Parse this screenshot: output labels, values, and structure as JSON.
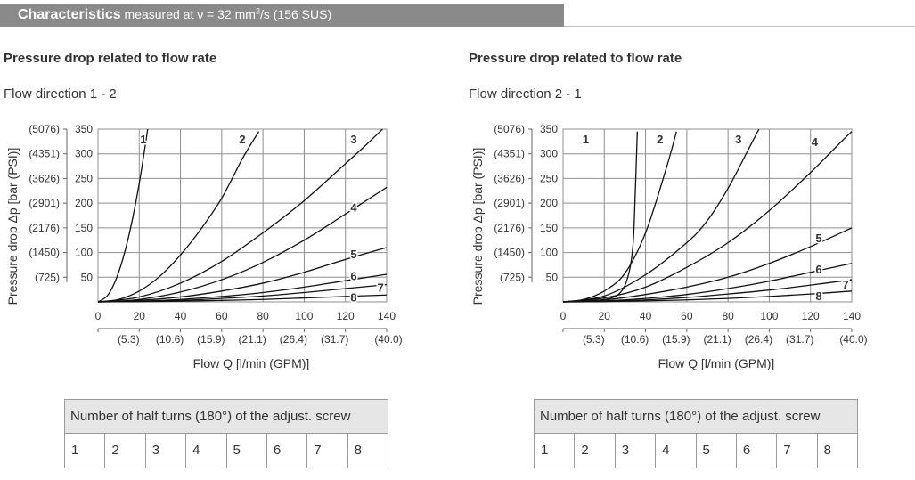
{
  "header": {
    "title": "Characteristics",
    "subtitle_pre": " measured at ν = 32 mm",
    "subtitle_sup": "2",
    "subtitle_post": "/s (156 SUS)"
  },
  "table": {
    "header": "Number of half turns (180°) of the adjust. screw",
    "cells": [
      "1",
      "2",
      "3",
      "4",
      "5",
      "6",
      "7",
      "8"
    ]
  },
  "chart_data": [
    {
      "type": "line",
      "title": "Pressure drop related to flow rate",
      "subtitle": "Flow direction 1 - 2",
      "xlabel": "Flow Q [l/min (GPM)]",
      "ylabel": "Pressure drop Δp [bar (PSI)]",
      "xlim": [
        0,
        140
      ],
      "ylim": [
        0,
        350
      ],
      "x_ticks": [
        0,
        20,
        40,
        60,
        80,
        100,
        120,
        140
      ],
      "x_ticks_secondary": [
        "(5.3)",
        "(10.6)",
        "(15.9)",
        "(21.1)",
        "(26.4)",
        "(31.7)",
        "(40.0)"
      ],
      "y_ticks": [
        50,
        100,
        150,
        200,
        250,
        300,
        350
      ],
      "y_ticks_secondary": [
        "(725)",
        "(1450)",
        "(2176)",
        "(2901)",
        "(3626)",
        "(4351)",
        "(5076)"
      ],
      "grid": true,
      "series": [
        {
          "name": "1",
          "x": [
            0,
            5,
            10,
            15,
            20,
            25
          ],
          "y": [
            0,
            15,
            60,
            135,
            240,
            375
          ]
        },
        {
          "name": "2",
          "x": [
            0,
            10,
            20,
            30,
            40,
            50,
            60,
            70,
            78
          ],
          "y": [
            0,
            5,
            22,
            52,
            95,
            148,
            210,
            290,
            345
          ]
        },
        {
          "name": "3",
          "x": [
            0,
            20,
            40,
            60,
            80,
            100,
            120,
            130,
            138
          ],
          "y": [
            0,
            10,
            38,
            82,
            140,
            205,
            280,
            318,
            350
          ]
        },
        {
          "name": "4",
          "x": [
            0,
            20,
            40,
            60,
            80,
            100,
            120,
            140
          ],
          "y": [
            0,
            5,
            20,
            45,
            80,
            125,
            178,
            232
          ]
        },
        {
          "name": "5",
          "x": [
            0,
            20,
            40,
            60,
            80,
            100,
            120,
            140
          ],
          "y": [
            0,
            3,
            10,
            22,
            38,
            60,
            86,
            110
          ]
        },
        {
          "name": "6",
          "x": [
            0,
            20,
            40,
            60,
            80,
            100,
            120,
            140
          ],
          "y": [
            0,
            1.5,
            5,
            11,
            19,
            30,
            43,
            56
          ]
        },
        {
          "name": "7",
          "x": [
            0,
            20,
            40,
            60,
            80,
            100,
            120,
            140
          ],
          "y": [
            0,
            1,
            3,
            7,
            12,
            19,
            27,
            35
          ]
        },
        {
          "name": "8",
          "x": [
            0,
            20,
            40,
            60,
            80,
            100,
            120,
            140
          ],
          "y": [
            0,
            0.5,
            1.5,
            3,
            5,
            8,
            11,
            14
          ]
        }
      ],
      "curve_labels": [
        {
          "name": "1",
          "x": 22,
          "y": 330
        },
        {
          "name": "2",
          "x": 70,
          "y": 330
        },
        {
          "name": "3",
          "x": 124,
          "y": 330
        },
        {
          "name": "4",
          "x": 124,
          "y": 192
        },
        {
          "name": "5",
          "x": 124,
          "y": 97
        },
        {
          "name": "6",
          "x": 124,
          "y": 53
        },
        {
          "name": "7",
          "x": 137,
          "y": 30
        },
        {
          "name": "8",
          "x": 124,
          "y": 10
        }
      ]
    },
    {
      "type": "line",
      "title": "Pressure drop related to flow rate",
      "subtitle": "Flow direction 2 - 1",
      "xlabel": "Flow Q [l/min (GPM)]",
      "ylabel": "Pressure drop Δp [bar (PSI)]",
      "xlim": [
        0,
        140
      ],
      "ylim": [
        0,
        350
      ],
      "x_ticks": [
        0,
        20,
        40,
        60,
        80,
        100,
        120,
        140
      ],
      "x_ticks_secondary": [
        "(5.3)",
        "(10.6)",
        "(15.9)",
        "(21.1)",
        "(26.4)",
        "(31.7)",
        "(40.0)"
      ],
      "y_ticks": [
        50,
        100,
        150,
        200,
        250,
        300,
        350
      ],
      "y_ticks_secondary": [
        "(725)",
        "(1450)",
        "(2176)",
        "(2901)",
        "(3626)",
        "(4351)",
        "(5076)"
      ],
      "grid": true,
      "series": [
        {
          "name": "1",
          "x": [
            0,
            20,
            28,
            32,
            34,
            35,
            36
          ],
          "y": [
            0,
            5,
            20,
            60,
            120,
            220,
            345
          ]
        },
        {
          "name": "2",
          "x": [
            0,
            10,
            20,
            30,
            40,
            50,
            55
          ],
          "y": [
            0,
            5,
            22,
            58,
            140,
            270,
            345
          ]
        },
        {
          "name": "3",
          "x": [
            0,
            20,
            40,
            60,
            70,
            80,
            90,
            95
          ],
          "y": [
            0,
            12,
            55,
            120,
            165,
            230,
            310,
            350
          ]
        },
        {
          "name": "4",
          "x": [
            0,
            20,
            40,
            60,
            80,
            100,
            120,
            135,
            140
          ],
          "y": [
            0,
            8,
            30,
            70,
            120,
            185,
            262,
            325,
            345
          ]
        },
        {
          "name": "5",
          "x": [
            0,
            20,
            40,
            60,
            80,
            100,
            120,
            140
          ],
          "y": [
            0,
            4,
            15,
            30,
            50,
            78,
            112,
            150
          ]
        },
        {
          "name": "6",
          "x": [
            0,
            20,
            40,
            60,
            80,
            100,
            120,
            140
          ],
          "y": [
            0,
            2,
            7,
            15,
            27,
            42,
            60,
            78
          ]
        },
        {
          "name": "7",
          "x": [
            0,
            20,
            40,
            60,
            80,
            100,
            120,
            140
          ],
          "y": [
            0,
            1,
            4,
            9,
            16,
            24,
            34,
            45
          ]
        },
        {
          "name": "8",
          "x": [
            0,
            20,
            40,
            60,
            80,
            100,
            120,
            140
          ],
          "y": [
            0,
            0.5,
            2,
            4,
            7,
            11,
            16,
            22
          ]
        }
      ],
      "curve_labels": [
        {
          "name": "1",
          "x": 11,
          "y": 330
        },
        {
          "name": "2",
          "x": 47,
          "y": 330
        },
        {
          "name": "3",
          "x": 85,
          "y": 330
        },
        {
          "name": "4",
          "x": 122,
          "y": 325
        },
        {
          "name": "5",
          "x": 124,
          "y": 130
        },
        {
          "name": "6",
          "x": 124,
          "y": 67
        },
        {
          "name": "7",
          "x": 137,
          "y": 36
        },
        {
          "name": "8",
          "x": 124,
          "y": 13
        }
      ]
    }
  ]
}
